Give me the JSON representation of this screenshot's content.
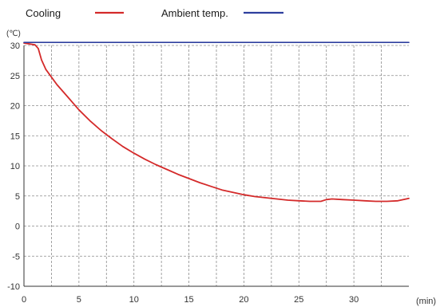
{
  "chart_data": {
    "type": "line",
    "x_unit": "(min)",
    "y_unit": "(℃)",
    "xlim": [
      0,
      35
    ],
    "ylim": [
      -10,
      30
    ],
    "x_ticks": [
      0,
      5,
      10,
      15,
      20,
      25,
      30
    ],
    "y_ticks": [
      -10,
      -5,
      0,
      5,
      10,
      15,
      20,
      25,
      30
    ],
    "x_minor_step": 2.5,
    "grid": true,
    "grid_style": "dashed",
    "legend_position": "top-left",
    "series": [
      {
        "name": "Cooling",
        "color": "#d42a2a",
        "x": [
          0,
          1,
          1.3,
          1.6,
          2,
          3,
          4,
          5,
          6,
          7,
          8,
          9,
          10,
          11,
          12,
          13,
          14,
          15,
          16,
          17,
          18,
          19,
          20,
          21,
          22,
          23,
          24,
          25,
          26,
          27,
          27.5,
          28,
          29,
          30,
          31,
          32,
          33,
          34,
          35
        ],
        "values": [
          30.4,
          30.1,
          29.5,
          27.6,
          26,
          23.5,
          21.4,
          19.3,
          17.5,
          15.9,
          14.5,
          13.2,
          12.1,
          11.1,
          10.2,
          9.4,
          8.6,
          7.9,
          7.2,
          6.6,
          6.0,
          5.6,
          5.2,
          4.9,
          4.7,
          4.5,
          4.3,
          4.2,
          4.1,
          4.1,
          4.4,
          4.5,
          4.4,
          4.3,
          4.2,
          4.1,
          4.1,
          4.2,
          4.6
        ]
      },
      {
        "name": "Ambient temp.",
        "color": "#2e3f9e",
        "x": [
          0,
          35
        ],
        "values": [
          30.5,
          30.5
        ]
      }
    ]
  }
}
